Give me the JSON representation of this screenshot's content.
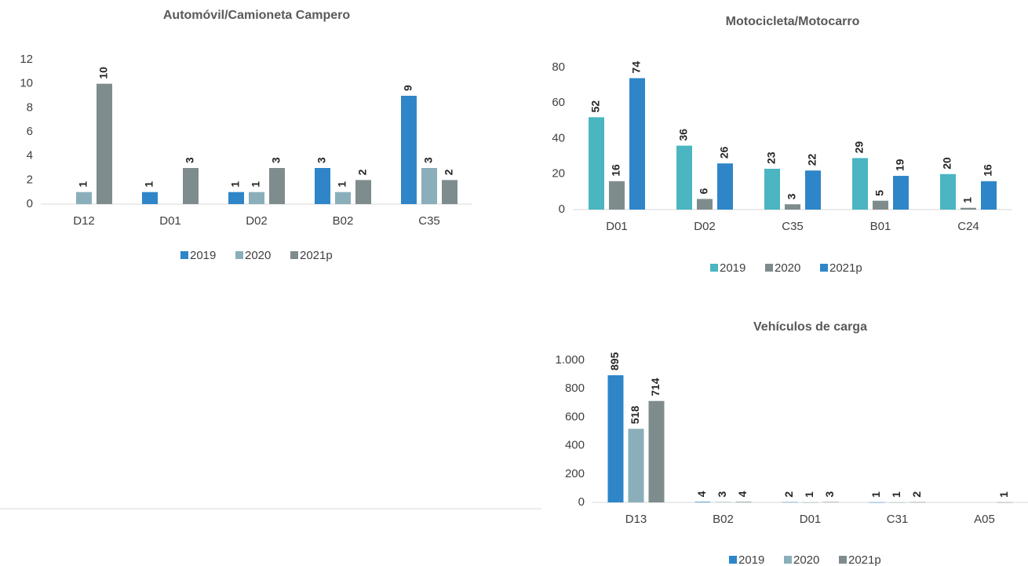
{
  "chart_data": [
    {
      "type": "bar",
      "title": "Automóvil/Camioneta Campero",
      "categories": [
        "D12",
        "D01",
        "D02",
        "B02",
        "C35"
      ],
      "series": [
        {
          "name": "2019",
          "color": "#2e86c8",
          "values": [
            null,
            1,
            1,
            3,
            9
          ]
        },
        {
          "name": "2020",
          "color": "#8aafba",
          "values": [
            1,
            null,
            1,
            1,
            3
          ]
        },
        {
          "name": "2021p",
          "color": "#7f8c8d",
          "values": [
            10,
            3,
            3,
            2,
            2
          ]
        }
      ],
      "ylim": [
        0,
        12
      ],
      "yticks": [
        0,
        2,
        4,
        6,
        8,
        10,
        12
      ],
      "legend": "bottom"
    },
    {
      "type": "bar",
      "title": "Motocicleta/Motocarro",
      "categories": [
        "D01",
        "D02",
        "C35",
        "B01",
        "C24"
      ],
      "series": [
        {
          "name": "2019",
          "color": "#4bb5c1",
          "values": [
            52,
            36,
            23,
            29,
            20
          ]
        },
        {
          "name": "2020",
          "color": "#7f8c8d",
          "values": [
            16,
            6,
            3,
            5,
            1
          ]
        },
        {
          "name": "2021p",
          "color": "#2e86c8",
          "values": [
            74,
            26,
            22,
            19,
            16
          ]
        }
      ],
      "ylim": [
        0,
        80
      ],
      "yticks": [
        0,
        20,
        40,
        60,
        80
      ],
      "legend": "bottom"
    },
    {
      "type": "bar",
      "title": "Vehículos de carga",
      "categories": [
        "D13",
        "B02",
        "D01",
        "C31",
        "A05"
      ],
      "series": [
        {
          "name": "2019",
          "color": "#2e86c8",
          "values": [
            895,
            4,
            2,
            1,
            null
          ]
        },
        {
          "name": "2020",
          "color": "#8aafba",
          "values": [
            518,
            3,
            1,
            1,
            null
          ]
        },
        {
          "name": "2021p",
          "color": "#7f8c8d",
          "values": [
            714,
            4,
            3,
            2,
            1
          ]
        }
      ],
      "ylim": [
        0,
        1000
      ],
      "yticks": [
        0,
        200,
        400,
        600,
        800,
        {
          "value": 1000,
          "label": "1.000"
        }
      ],
      "legend": "bottom"
    }
  ]
}
